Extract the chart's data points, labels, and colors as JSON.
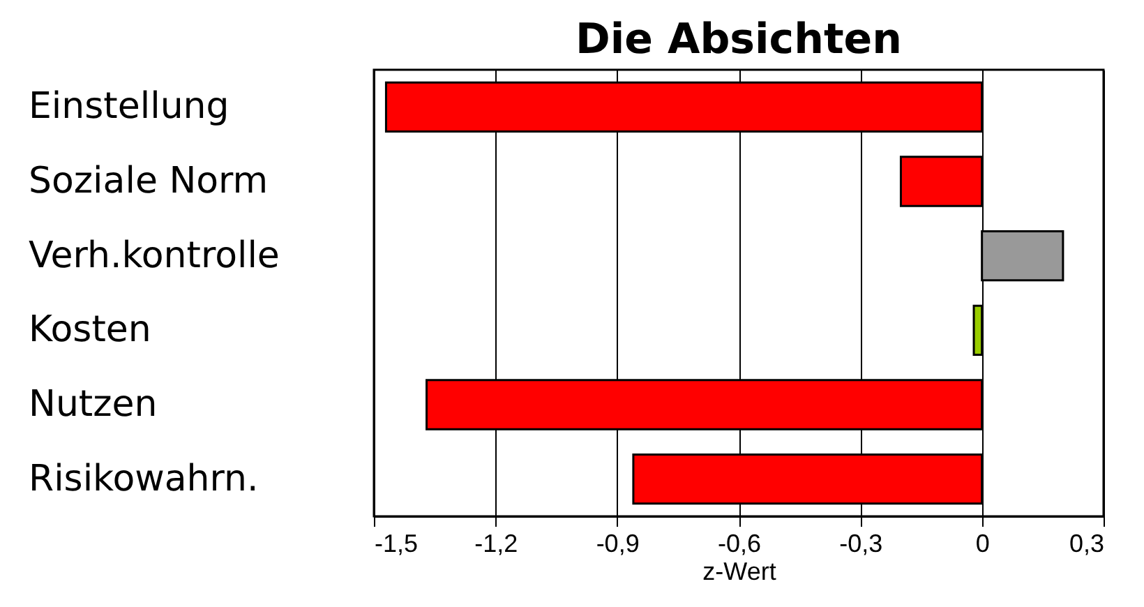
{
  "chart_data": {
    "type": "bar",
    "orientation": "horizontal",
    "title": "Die Absichten",
    "xlabel": "z-Wert",
    "categories": [
      "Einstellung",
      "Soziale Norm",
      "Verh.kontrolle",
      "Kosten",
      "Nutzen",
      "Risikowahrn."
    ],
    "values": [
      -1.47,
      -0.2,
      0.2,
      -0.02,
      -1.37,
      -0.86
    ],
    "colors": [
      "#ff0000",
      "#ff0000",
      "#999999",
      "#99cc00",
      "#ff0000",
      "#ff0000"
    ],
    "xlim": [
      -1.5,
      0.3
    ],
    "xticks": [
      {
        "value": -1.5,
        "label": "-1,5"
      },
      {
        "value": -1.2,
        "label": "-1,2"
      },
      {
        "value": -0.9,
        "label": "-0,9"
      },
      {
        "value": -0.6,
        "label": "-0,6"
      },
      {
        "value": -0.3,
        "label": "-0,3"
      },
      0,
      {
        "value": 0.3,
        "label": "0,3"
      }
    ],
    "grid": "x"
  }
}
